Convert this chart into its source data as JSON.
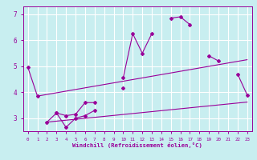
{
  "xlabel": "Windchill (Refroidissement éolien,°C)",
  "background_color": "#c8eef0",
  "grid_color": "#ffffff",
  "line_color": "#990099",
  "x_values": [
    0,
    1,
    2,
    3,
    4,
    5,
    6,
    7,
    8,
    9,
    10,
    11,
    12,
    13,
    14,
    15,
    16,
    17,
    18,
    19,
    20,
    21,
    22,
    23
  ],
  "series1": [
    4.95,
    3.85,
    null,
    null,
    null,
    null,
    null,
    null,
    null,
    null,
    4.55,
    6.25,
    5.5,
    6.25,
    null,
    6.85,
    6.9,
    6.6,
    null,
    5.4,
    5.2,
    null,
    4.7,
    3.9
  ],
  "series2": [
    null,
    null,
    2.85,
    3.2,
    3.1,
    3.15,
    3.6,
    3.6,
    null,
    null,
    4.15,
    null,
    null,
    null,
    null,
    null,
    null,
    null,
    null,
    null,
    null,
    null,
    null,
    null
  ],
  "series3": [
    null,
    null,
    null,
    3.2,
    2.65,
    3.0,
    3.1,
    3.3,
    null,
    null,
    null,
    null,
    null,
    null,
    null,
    null,
    null,
    null,
    null,
    null,
    null,
    null,
    null,
    null
  ],
  "line1_x": [
    1,
    23
  ],
  "line1_y": [
    3.85,
    5.25
  ],
  "line2_x": [
    2,
    23
  ],
  "line2_y": [
    2.85,
    3.62
  ],
  "ylim": [
    2.5,
    7.3
  ],
  "xlim": [
    -0.5,
    23.5
  ],
  "yticks": [
    3,
    4,
    5,
    6,
    7
  ],
  "xticks": [
    0,
    1,
    2,
    3,
    4,
    5,
    6,
    7,
    8,
    9,
    10,
    11,
    12,
    13,
    14,
    15,
    16,
    17,
    18,
    19,
    20,
    21,
    22,
    23
  ]
}
